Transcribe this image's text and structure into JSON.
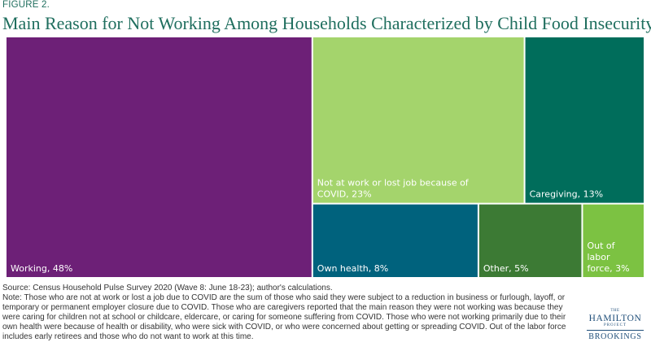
{
  "figure_label": "FIGURE 2.",
  "chart_data": {
    "type": "treemap",
    "title": "Main Reason for Not Working Among Households Characterized by Child Food Insecurity",
    "series": [
      {
        "label": "Working, 48%",
        "value": 48,
        "color": "#6d2077"
      },
      {
        "label": "Not at work or lost job because of COVID, 23%",
        "value": 23,
        "color": "#a4d46c"
      },
      {
        "label": "Caregiving, 13%",
        "value": 13,
        "color": "#006d5b"
      },
      {
        "label": "Own health, 8%",
        "value": 8,
        "color": "#00627d"
      },
      {
        "label": "Other, 5%",
        "value": 5,
        "color": "#3c7a34"
      },
      {
        "label": "Out of labor force, 3%",
        "value": 3,
        "color": "#7cc242"
      }
    ]
  },
  "source_text": "Source: Census Household Pulse Survey 2020 (Wave 8: June 18-23); author's calculations.",
  "note_text": "Note: Those who are not at work or lost a job due to COVID are the sum of those who said they were subject to a reduction in business or furlough, layoff, or temporary or permanent employer closure due to COVID. Those who are caregivers reported that the main reason they were not working was because they were caring for children not at school or childcare, eldercare, or caring for someone suffering from COVID. Those who were not working primarily due to their own health were because of health or disability, who were sick with COVID, or who were concerned about getting or spreading COVID. Out of the labor force includes early retirees and those who do not want to work at this time.",
  "logo": {
    "the": "THE",
    "hamilton": "HAMILTON",
    "project": "PROJECT",
    "brookings": "BROOKINGS"
  }
}
